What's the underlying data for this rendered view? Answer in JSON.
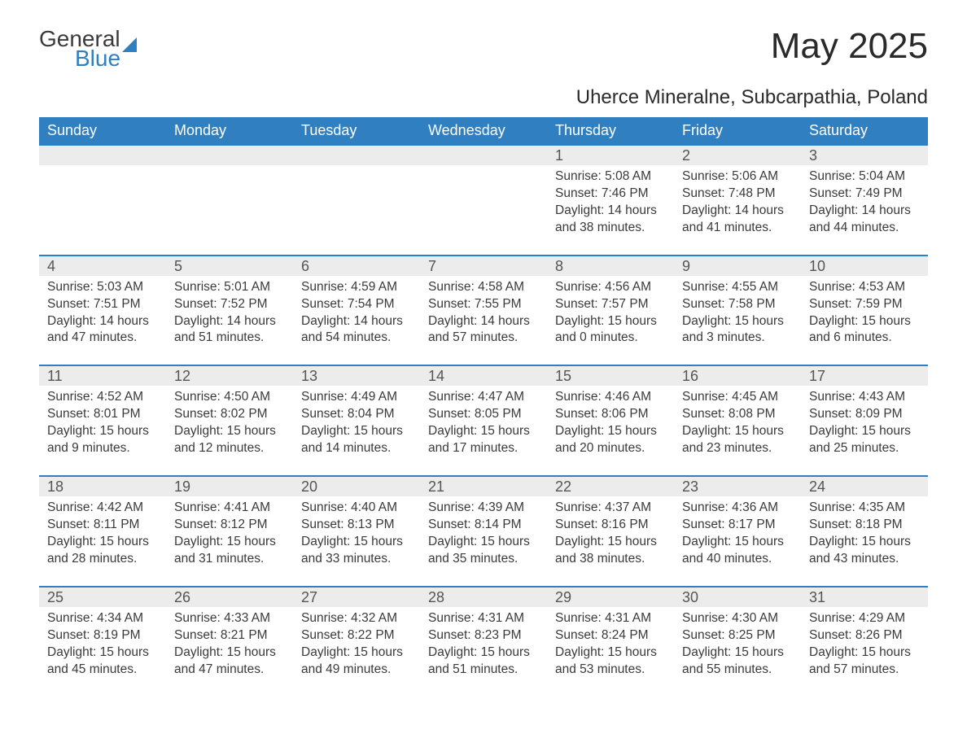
{
  "brand": {
    "word1": "General",
    "word2": "Blue"
  },
  "title": "May 2025",
  "location": "Uherce Mineralne, Subcarpathia, Poland",
  "colors": {
    "header_bg": "#2f7fc1",
    "header_text": "#ffffff",
    "band_bg": "#ececec",
    "band_border": "#2f7fc1",
    "body_text": "#3a3a3a",
    "page_bg": "#ffffff"
  },
  "fontsizes": {
    "title": 44,
    "subtitle": 24,
    "weekday": 18,
    "daynum": 18,
    "cell": 15.5
  },
  "weekdays": [
    "Sunday",
    "Monday",
    "Tuesday",
    "Wednesday",
    "Thursday",
    "Friday",
    "Saturday"
  ],
  "weeks": [
    [
      null,
      null,
      null,
      null,
      {
        "n": "1",
        "sunrise": "5:08 AM",
        "sunset": "7:46 PM",
        "dl_h": 14,
        "dl_m": 38
      },
      {
        "n": "2",
        "sunrise": "5:06 AM",
        "sunset": "7:48 PM",
        "dl_h": 14,
        "dl_m": 41
      },
      {
        "n": "3",
        "sunrise": "5:04 AM",
        "sunset": "7:49 PM",
        "dl_h": 14,
        "dl_m": 44
      }
    ],
    [
      {
        "n": "4",
        "sunrise": "5:03 AM",
        "sunset": "7:51 PM",
        "dl_h": 14,
        "dl_m": 47
      },
      {
        "n": "5",
        "sunrise": "5:01 AM",
        "sunset": "7:52 PM",
        "dl_h": 14,
        "dl_m": 51
      },
      {
        "n": "6",
        "sunrise": "4:59 AM",
        "sunset": "7:54 PM",
        "dl_h": 14,
        "dl_m": 54
      },
      {
        "n": "7",
        "sunrise": "4:58 AM",
        "sunset": "7:55 PM",
        "dl_h": 14,
        "dl_m": 57
      },
      {
        "n": "8",
        "sunrise": "4:56 AM",
        "sunset": "7:57 PM",
        "dl_h": 15,
        "dl_m": 0
      },
      {
        "n": "9",
        "sunrise": "4:55 AM",
        "sunset": "7:58 PM",
        "dl_h": 15,
        "dl_m": 3
      },
      {
        "n": "10",
        "sunrise": "4:53 AM",
        "sunset": "7:59 PM",
        "dl_h": 15,
        "dl_m": 6
      }
    ],
    [
      {
        "n": "11",
        "sunrise": "4:52 AM",
        "sunset": "8:01 PM",
        "dl_h": 15,
        "dl_m": 9
      },
      {
        "n": "12",
        "sunrise": "4:50 AM",
        "sunset": "8:02 PM",
        "dl_h": 15,
        "dl_m": 12
      },
      {
        "n": "13",
        "sunrise": "4:49 AM",
        "sunset": "8:04 PM",
        "dl_h": 15,
        "dl_m": 14
      },
      {
        "n": "14",
        "sunrise": "4:47 AM",
        "sunset": "8:05 PM",
        "dl_h": 15,
        "dl_m": 17
      },
      {
        "n": "15",
        "sunrise": "4:46 AM",
        "sunset": "8:06 PM",
        "dl_h": 15,
        "dl_m": 20
      },
      {
        "n": "16",
        "sunrise": "4:45 AM",
        "sunset": "8:08 PM",
        "dl_h": 15,
        "dl_m": 23
      },
      {
        "n": "17",
        "sunrise": "4:43 AM",
        "sunset": "8:09 PM",
        "dl_h": 15,
        "dl_m": 25
      }
    ],
    [
      {
        "n": "18",
        "sunrise": "4:42 AM",
        "sunset": "8:11 PM",
        "dl_h": 15,
        "dl_m": 28
      },
      {
        "n": "19",
        "sunrise": "4:41 AM",
        "sunset": "8:12 PM",
        "dl_h": 15,
        "dl_m": 31
      },
      {
        "n": "20",
        "sunrise": "4:40 AM",
        "sunset": "8:13 PM",
        "dl_h": 15,
        "dl_m": 33
      },
      {
        "n": "21",
        "sunrise": "4:39 AM",
        "sunset": "8:14 PM",
        "dl_h": 15,
        "dl_m": 35
      },
      {
        "n": "22",
        "sunrise": "4:37 AM",
        "sunset": "8:16 PM",
        "dl_h": 15,
        "dl_m": 38
      },
      {
        "n": "23",
        "sunrise": "4:36 AM",
        "sunset": "8:17 PM",
        "dl_h": 15,
        "dl_m": 40
      },
      {
        "n": "24",
        "sunrise": "4:35 AM",
        "sunset": "8:18 PM",
        "dl_h": 15,
        "dl_m": 43
      }
    ],
    [
      {
        "n": "25",
        "sunrise": "4:34 AM",
        "sunset": "8:19 PM",
        "dl_h": 15,
        "dl_m": 45
      },
      {
        "n": "26",
        "sunrise": "4:33 AM",
        "sunset": "8:21 PM",
        "dl_h": 15,
        "dl_m": 47
      },
      {
        "n": "27",
        "sunrise": "4:32 AM",
        "sunset": "8:22 PM",
        "dl_h": 15,
        "dl_m": 49
      },
      {
        "n": "28",
        "sunrise": "4:31 AM",
        "sunset": "8:23 PM",
        "dl_h": 15,
        "dl_m": 51
      },
      {
        "n": "29",
        "sunrise": "4:31 AM",
        "sunset": "8:24 PM",
        "dl_h": 15,
        "dl_m": 53
      },
      {
        "n": "30",
        "sunrise": "4:30 AM",
        "sunset": "8:25 PM",
        "dl_h": 15,
        "dl_m": 55
      },
      {
        "n": "31",
        "sunrise": "4:29 AM",
        "sunset": "8:26 PM",
        "dl_h": 15,
        "dl_m": 57
      }
    ]
  ],
  "labels": {
    "sunrise": "Sunrise:",
    "sunset": "Sunset:",
    "daylight": "Daylight:",
    "hours": "hours",
    "and": "and",
    "minutes": "minutes."
  }
}
